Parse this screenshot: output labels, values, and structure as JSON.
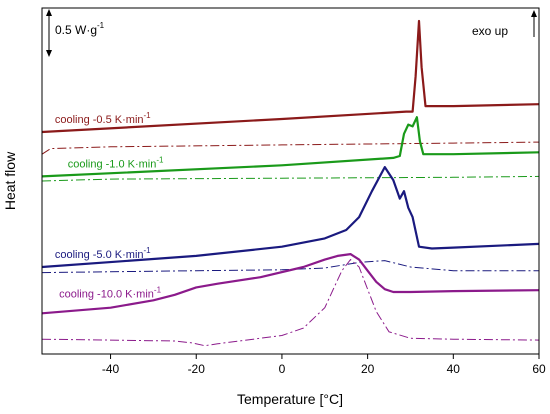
{
  "chart_data": {
    "type": "line",
    "xlabel": "Temperature [°C]",
    "ylabel": "Heat flow",
    "xlim": [
      -56,
      60
    ],
    "xticks": [
      -40,
      -20,
      0,
      20,
      40,
      60
    ],
    "grid": false,
    "annotations": {
      "scale_bar": "0.5 W·g",
      "scale_bar_exp": "-1",
      "exo": "exo up"
    },
    "label_unit": "K·min",
    "label_exp": "-1",
    "series": [
      {
        "name": "cooling -0.5",
        "color": "#8b1a1a",
        "x": [
          -56,
          0,
          29,
          30.5,
          31.2,
          32,
          32.6,
          33.5,
          40,
          60
        ],
        "y": [
          7.5,
          8.2,
          8.6,
          8.6,
          10.5,
          13.5,
          11.0,
          8.9,
          8.9,
          9.0
        ],
        "ref_x": [
          -56,
          -54,
          -40,
          0,
          40,
          60
        ],
        "ref_y": [
          6.3,
          6.6,
          6.7,
          6.8,
          6.9,
          6.95
        ]
      },
      {
        "name": "cooling -1.0",
        "color": "#1a9a1a",
        "x": [
          -56,
          0,
          26,
          27.5,
          28.5,
          29.5,
          30.5,
          31.5,
          32.2,
          33,
          40,
          60
        ],
        "y": [
          5.1,
          5.7,
          6.1,
          6.2,
          7.4,
          7.9,
          7.8,
          8.3,
          7.0,
          6.3,
          6.3,
          6.4
        ],
        "ref_x": [
          -56,
          -40,
          0,
          40,
          60
        ],
        "ref_y": [
          4.85,
          4.95,
          5.0,
          5.05,
          5.1
        ]
      },
      {
        "name": "cooling -5.0",
        "color": "#1a1a7f",
        "x": [
          -56,
          -20,
          0,
          10,
          15,
          18,
          21,
          24,
          26,
          27.5,
          28.5,
          29.5,
          30.5,
          32,
          35,
          40,
          60
        ],
        "y": [
          0.2,
          0.8,
          1.3,
          1.75,
          2.2,
          2.9,
          4.3,
          5.6,
          4.9,
          3.9,
          4.3,
          3.4,
          2.9,
          1.3,
          1.2,
          1.25,
          1.45
        ],
        "ref_x": [
          -56,
          -20,
          0,
          10,
          18,
          24,
          30,
          40,
          60
        ],
        "ref_y": [
          -0.1,
          0.0,
          0.05,
          0.15,
          0.45,
          0.55,
          0.2,
          0.0,
          0.0
        ]
      },
      {
        "name": "cooling -10.0",
        "color": "#8b1a8b",
        "x": [
          -56,
          -40,
          -30,
          -25,
          -20,
          -15,
          -5,
          5,
          10,
          13,
          16,
          18,
          20,
          22,
          24,
          26,
          30,
          40,
          60
        ],
        "y": [
          -2.3,
          -2.0,
          -1.6,
          -1.3,
          -0.9,
          -0.7,
          -0.35,
          0.2,
          0.6,
          0.8,
          0.9,
          0.6,
          0.0,
          -0.6,
          -1.0,
          -1.15,
          -1.15,
          -1.1,
          -1.05
        ],
        "ref_x": [
          -56,
          -40,
          -25,
          -21,
          -18,
          -15,
          -10,
          0,
          5,
          10,
          12,
          14,
          16,
          18,
          20,
          22,
          25,
          30,
          40,
          60
        ],
        "ref_y": [
          -3.7,
          -3.75,
          -3.8,
          -3.9,
          -4.05,
          -3.95,
          -3.8,
          -3.5,
          -3.1,
          -2.0,
          -1.0,
          0.0,
          0.6,
          0.2,
          -1.0,
          -2.2,
          -3.3,
          -3.65,
          -3.7,
          -3.75
        ]
      }
    ]
  }
}
